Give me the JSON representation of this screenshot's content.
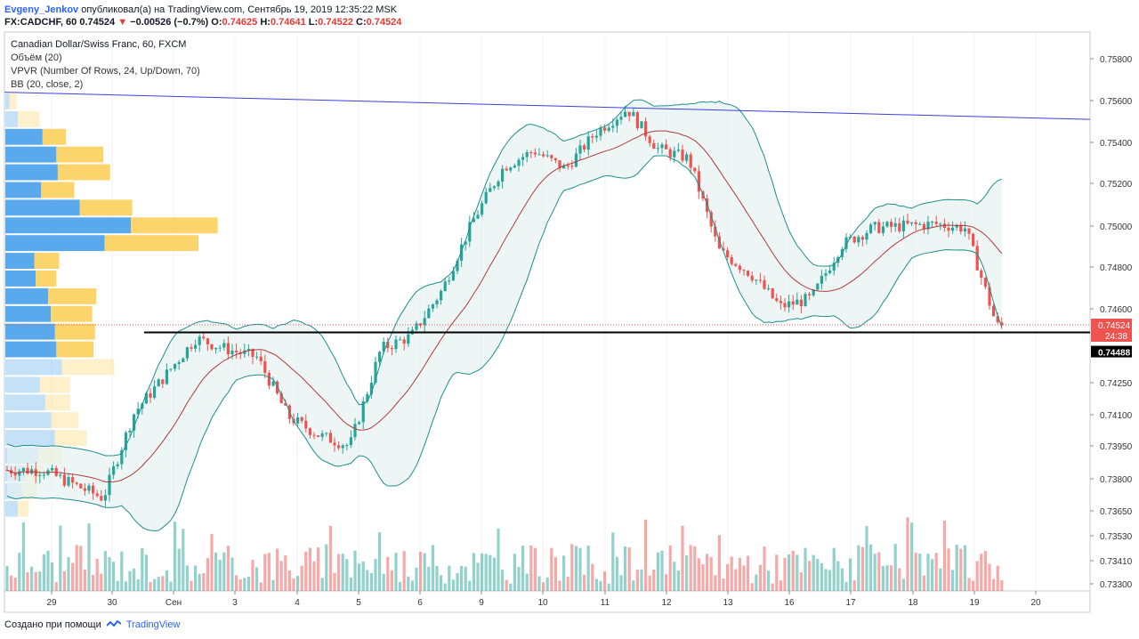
{
  "header": {
    "author": "Evgeny_Jenkov",
    "published_text": "опубликовал(а) на TradingView.com, Сентябрь 19, 2019 12:35:22 MSK",
    "symbol": "FX:CADCHF, 60",
    "last": "0.74524",
    "change_arrow": "▼",
    "change": "−0.00526 (−0.7%)",
    "o_label": "O:",
    "o": "0.74625",
    "h_label": "H:",
    "h": "0.74641",
    "l_label": "L:",
    "l": "0.74522",
    "c_label": "C:",
    "c": "0.74524"
  },
  "legend": {
    "title": "Canadian Dollar/Swiss Franc, 60, FXCM",
    "volume": "Объём (20)",
    "vpvr": "VPVR (Number Of Rows, 24, Up/Down, 70)",
    "bb": "BB (20, close, 2)"
  },
  "price_labels": {
    "last_price": "0.74524",
    "countdown": "24:38",
    "level": "0.74488"
  },
  "footer": {
    "created_with": "Создано при помощи",
    "brand": "TradingView"
  },
  "colors": {
    "up": "#26a69a",
    "down": "#ef5350",
    "bb_band": "#1e8e8e",
    "bb_basis": "#b03a3a",
    "trendline": "#3f3fe0",
    "vp_up": "#5aa9ec",
    "vp_down": "#fbd46b",
    "level_label_bg": "#000000",
    "last_label_bg": "#ef5350"
  },
  "chart_data": {
    "type": "candlestick",
    "symbol": "CADCHF",
    "timeframe": "60",
    "x_ticks": [
      "29",
      "30",
      "Сен",
      "3",
      "4",
      "5",
      "6",
      "9",
      "10",
      "11",
      "12",
      "13",
      "16",
      "17",
      "18",
      "19",
      "20"
    ],
    "y_ticks": [
      "0.75800",
      "0.75600",
      "0.75400",
      "0.75200",
      "0.75000",
      "0.74800",
      "0.74600",
      "0.74250",
      "0.74100",
      "0.73950",
      "0.73800",
      "0.73650",
      "0.73530",
      "0.73410",
      "0.73300"
    ],
    "price_path": [
      [
        "29",
        0.7384
      ],
      [
        "30",
        0.7371
      ],
      [
        "30",
        0.7411
      ],
      [
        "Сен",
        0.7428
      ],
      [
        "Сен",
        0.7446
      ],
      [
        "3",
        0.7441
      ],
      [
        "3",
        0.7437
      ],
      [
        "4",
        0.7409
      ],
      [
        "4",
        0.74
      ],
      [
        "5",
        0.7395
      ],
      [
        "5",
        0.7441
      ],
      [
        "6",
        0.7447
      ],
      [
        "6",
        0.7469
      ],
      [
        "9",
        0.7502
      ],
      [
        "9",
        0.7528
      ],
      [
        "10",
        0.7536
      ],
      [
        "10",
        0.7527
      ],
      [
        "11",
        0.7545
      ],
      [
        "11",
        0.7556
      ],
      [
        "12",
        0.7537
      ],
      [
        "12",
        0.7532
      ],
      [
        "13",
        0.7488
      ],
      [
        "13",
        0.7477
      ],
      [
        "16",
        0.7461
      ],
      [
        "16",
        0.7465
      ],
      [
        "17",
        0.7491
      ],
      [
        "17",
        0.7499
      ],
      [
        "18",
        0.75
      ],
      [
        "18",
        0.7501
      ],
      [
        "19",
        0.7499
      ],
      [
        "19",
        0.7452
      ]
    ],
    "trendline": {
      "from": 0.7564,
      "to": 0.7551
    },
    "horizontal_level": 0.74488,
    "last_price": 0.74524,
    "vpvr": {
      "rows": 24,
      "up_volume": [
        0.3,
        0.9,
        2.7,
        3.7,
        3.8,
        2.6,
        5.4,
        9.1,
        7.2,
        2.1,
        2.2,
        3.1,
        3.3,
        3.6,
        3.7,
        4.1,
        2.5,
        2.9,
        3.3,
        3.6,
        2.4,
        1.4,
        1.2,
        0.9
      ],
      "down_volume": [
        0.5,
        1.6,
        1.7,
        3.4,
        3.8,
        2.4,
        3.8,
        6.3,
        6.8,
        1.8,
        1.5,
        3.5,
        3.0,
        2.9,
        2.7,
        3.8,
        2.2,
        1.8,
        2.0,
        2.3,
        1.7,
        1.3,
        1.1,
        0.8
      ]
    },
    "volume_note": "Объём (20) histogram, green = up bars, red = down bars"
  }
}
